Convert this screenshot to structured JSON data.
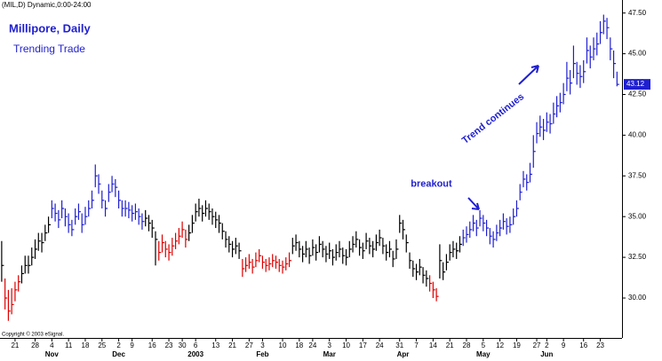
{
  "chart_data": {
    "type": "ohlc",
    "header": "(MIL,D) Dynamic,0:00-24:00",
    "title": "Millipore, Daily",
    "subtitle": "Trending Trade",
    "copyright": "Copyright © 2003 eSignal.",
    "annotations": [
      {
        "text": "breakout",
        "x": 128.5,
        "y": 37.0
      },
      {
        "text": "Trend continues",
        "x": 147,
        "y": 41.0
      }
    ],
    "ylim": [
      27.55,
      48.3
    ],
    "xlim": [
      -0.5,
      185.5
    ],
    "yticks": [
      {
        "value": 30,
        "label": "30.00"
      },
      {
        "value": 32.5,
        "label": "32.50"
      },
      {
        "value": 35,
        "label": "35.00"
      },
      {
        "value": 37.5,
        "label": "37.50"
      },
      {
        "value": 40,
        "label": "40.00"
      },
      {
        "value": 42.5,
        "label": "42.50"
      },
      {
        "value": 45,
        "label": "45.00"
      },
      {
        "value": 47.5,
        "label": "47.50"
      }
    ],
    "last_price": {
      "value": 43.12,
      "label": "43.12",
      "color": "#1f1fd0"
    },
    "xticks": [
      {
        "value": 4,
        "label": "21"
      },
      {
        "value": 10,
        "label": "28"
      },
      {
        "value": 15,
        "label": "4"
      },
      {
        "value": 20,
        "label": "11"
      },
      {
        "value": 25,
        "label": "18"
      },
      {
        "value": 30,
        "label": "25"
      },
      {
        "value": 35,
        "label": "2"
      },
      {
        "value": 39,
        "label": "9"
      },
      {
        "value": 45,
        "label": "16"
      },
      {
        "value": 50,
        "label": "23"
      },
      {
        "value": 54,
        "label": "30"
      },
      {
        "value": 58,
        "label": "6"
      },
      {
        "value": 64,
        "label": "13"
      },
      {
        "value": 69,
        "label": "21"
      },
      {
        "value": 74,
        "label": "27"
      },
      {
        "value": 78,
        "label": "3"
      },
      {
        "value": 84,
        "label": "10"
      },
      {
        "value": 89,
        "label": "18"
      },
      {
        "value": 93,
        "label": "24"
      },
      {
        "value": 98,
        "label": "3"
      },
      {
        "value": 103,
        "label": "10"
      },
      {
        "value": 108,
        "label": "17"
      },
      {
        "value": 113,
        "label": "24"
      },
      {
        "value": 119,
        "label": "31"
      },
      {
        "value": 124,
        "label": "7"
      },
      {
        "value": 129,
        "label": "14"
      },
      {
        "value": 134,
        "label": "21"
      },
      {
        "value": 139,
        "label": "28"
      },
      {
        "value": 144,
        "label": "5"
      },
      {
        "value": 149,
        "label": "12"
      },
      {
        "value": 154,
        "label": "19"
      },
      {
        "value": 160,
        "label": "27"
      },
      {
        "value": 163,
        "label": "2"
      },
      {
        "value": 168,
        "label": "9"
      },
      {
        "value": 174,
        "label": "16"
      },
      {
        "value": 179,
        "label": "23"
      }
    ],
    "month_labels": [
      {
        "value": 15,
        "label": "Nov"
      },
      {
        "value": 35,
        "label": "Dec"
      },
      {
        "value": 58,
        "label": "2003"
      },
      {
        "value": 78,
        "label": "Feb"
      },
      {
        "value": 98,
        "label": "Mar"
      },
      {
        "value": 120,
        "label": "Apr"
      },
      {
        "value": 144,
        "label": "May"
      },
      {
        "value": 163,
        "label": "Jun"
      }
    ],
    "color_runs": [
      {
        "color": "#000000",
        "count": 1
      },
      {
        "color": "#dd0000",
        "count": 5
      },
      {
        "color": "#000000",
        "count": 9
      },
      {
        "color": "#1f1fd0",
        "count": 28
      },
      {
        "color": "#000000",
        "count": 4
      },
      {
        "color": "#dd0000",
        "count": 9
      },
      {
        "color": "#000000",
        "count": 16
      },
      {
        "color": "#dd0000",
        "count": 15
      },
      {
        "color": "#000000",
        "count": 41
      },
      {
        "color": "#dd0000",
        "count": 3
      },
      {
        "color": "#000000",
        "count": 7
      },
      {
        "color": "#1f1fd0",
        "count": 47
      }
    ],
    "high": [
      33.5,
      31.2,
      30.5,
      30.6,
      31.0,
      31.4,
      32.0,
      32.6,
      32.6,
      33.1,
      33.6,
      34.0,
      34.0,
      34.5,
      35.0,
      36.0,
      35.8,
      35.4,
      36.0,
      35.5,
      35.2,
      34.8,
      35.5,
      35.8,
      35.2,
      35.6,
      36.0,
      36.6,
      38.2,
      37.6,
      36.6,
      36.0,
      37.0,
      37.5,
      37.3,
      36.6,
      36.0,
      36.0,
      35.9,
      35.7,
      35.8,
      35.5,
      35.2,
      35.4,
      35.1,
      34.8,
      34.1,
      33.5,
      33.9,
      33.5,
      33.3,
      33.7,
      34.0,
      34.3,
      34.7,
      34.2,
      34.5,
      35.1,
      35.8,
      36.1,
      35.7,
      36.0,
      35.8,
      35.5,
      35.3,
      35.1,
      34.6,
      34.1,
      33.8,
      33.5,
      33.7,
      33.4,
      32.4,
      32.5,
      32.7,
      32.4,
      32.8,
      33.0,
      32.6,
      32.4,
      32.5,
      32.7,
      32.6,
      32.4,
      32.3,
      32.5,
      32.8,
      33.7,
      33.9,
      33.5,
      33.2,
      33.5,
      33.1,
      33.6,
      33.3,
      33.8,
      33.5,
      33.2,
      33.4,
      33.0,
      33.3,
      33.5,
      33.1,
      33.0,
      33.5,
      33.8,
      34.1,
      33.6,
      33.4,
      34.0,
      33.7,
      33.5,
      33.9,
      34.2,
      33.7,
      33.3,
      33.5,
      32.9,
      33.6,
      35.1,
      34.8,
      33.9,
      32.8,
      32.3,
      32.1,
      32.4,
      31.9,
      31.7,
      31.4,
      31.0,
      30.6,
      33.3,
      32.2,
      32.7,
      33.3,
      33.5,
      33.4,
      33.8,
      34.2,
      34.4,
      34.7,
      35.1,
      34.8,
      35.4,
      35.1,
      34.8,
      34.3,
      34.1,
      34.5,
      34.8,
      35.2,
      34.9,
      35.0,
      35.5,
      36.0,
      37.0,
      37.8,
      37.6,
      38.3,
      40.0,
      40.8,
      41.2,
      41.0,
      41.4,
      41.3,
      42.0,
      42.4,
      42.6,
      43.2,
      44.5,
      44.0,
      45.5,
      44.5,
      44.3,
      44.6,
      46.0,
      45.5,
      46.0,
      46.3,
      47.0,
      47.4,
      47.2,
      46.0,
      45.2,
      43.9
    ],
    "low": [
      31.0,
      29.3,
      28.6,
      29.0,
      29.8,
      30.4,
      30.9,
      31.5,
      31.5,
      32.0,
      32.4,
      32.9,
      32.8,
      33.5,
      34.0,
      34.9,
      34.7,
      34.3,
      34.9,
      34.4,
      34.0,
      33.8,
      34.5,
      34.8,
      34.0,
      34.5,
      35.0,
      35.5,
      36.8,
      36.4,
      35.5,
      35.0,
      35.9,
      36.5,
      36.2,
      35.5,
      35.0,
      35.0,
      34.9,
      34.7,
      34.8,
      34.5,
      34.2,
      34.4,
      34.1,
      33.7,
      32.0,
      32.3,
      32.8,
      32.5,
      32.3,
      32.6,
      33.0,
      33.3,
      33.7,
      33.1,
      33.5,
      34.0,
      34.7,
      35.0,
      34.7,
      35.0,
      34.8,
      34.5,
      34.3,
      34.0,
      33.6,
      33.1,
      32.8,
      32.5,
      32.7,
      32.4,
      31.3,
      31.6,
      31.8,
      31.5,
      31.9,
      32.2,
      31.8,
      31.6,
      31.7,
      31.9,
      31.8,
      31.6,
      31.5,
      31.7,
      31.9,
      32.7,
      32.9,
      32.5,
      32.2,
      32.5,
      32.1,
      32.6,
      32.3,
      32.8,
      32.5,
      32.2,
      32.4,
      32.0,
      32.3,
      32.5,
      32.1,
      32.0,
      32.5,
      32.8,
      33.1,
      32.6,
      32.4,
      33.0,
      32.7,
      32.5,
      32.9,
      33.2,
      32.7,
      32.3,
      32.5,
      31.9,
      32.4,
      34.0,
      33.6,
      32.8,
      31.8,
      31.3,
      31.1,
      31.4,
      30.9,
      30.7,
      30.4,
      30.0,
      29.8,
      31.2,
      31.1,
      31.7,
      32.3,
      32.5,
      32.4,
      32.8,
      33.2,
      33.4,
      33.7,
      34.1,
      33.8,
      34.4,
      34.1,
      33.8,
      33.3,
      33.1,
      33.5,
      33.8,
      34.2,
      33.9,
      34.0,
      34.5,
      35.0,
      36.0,
      36.8,
      36.6,
      37.1,
      38.0,
      39.5,
      39.9,
      39.7,
      40.2,
      40.1,
      40.7,
      41.1,
      41.4,
      41.9,
      42.7,
      42.5,
      43.5,
      43.1,
      42.9,
      43.2,
      44.4,
      44.1,
      44.6,
      44.9,
      45.6,
      46.2,
      45.9,
      44.6,
      43.5,
      43.0
    ],
    "close": [
      32.0,
      30.0,
      29.2,
      29.6,
      30.5,
      31.0,
      31.5,
      32.0,
      32.0,
      32.5,
      33.0,
      33.5,
      33.4,
      34.0,
      34.5,
      35.5,
      35.2,
      34.8,
      35.5,
      35.0,
      34.5,
      34.2,
      35.0,
      35.3,
      34.5,
      35.0,
      35.5,
      36.0,
      37.5,
      37.0,
      36.0,
      35.5,
      36.5,
      37.0,
      36.8,
      36.0,
      35.5,
      35.5,
      35.4,
      35.2,
      35.3,
      35.0,
      34.7,
      34.9,
      34.6,
      34.3,
      33.6,
      32.8,
      33.4,
      33.0,
      32.8,
      33.2,
      33.5,
      33.8,
      34.2,
      33.6,
      34.0,
      34.6,
      35.3,
      35.5,
      35.2,
      35.5,
      35.3,
      35.0,
      34.8,
      34.6,
      34.1,
      33.6,
      33.3,
      33.0,
      33.2,
      32.9,
      31.8,
      32.0,
      32.2,
      31.9,
      32.3,
      32.6,
      32.2,
      32.0,
      32.1,
      32.3,
      32.2,
      32.0,
      31.9,
      32.1,
      32.3,
      33.2,
      33.4,
      33.0,
      32.7,
      33.0,
      32.6,
      33.1,
      32.8,
      33.3,
      33.0,
      32.7,
      32.9,
      32.5,
      32.8,
      33.0,
      32.6,
      32.5,
      33.0,
      33.3,
      33.6,
      33.1,
      32.9,
      33.5,
      33.2,
      33.0,
      33.4,
      33.7,
      33.2,
      32.8,
      33.0,
      32.4,
      33.0,
      34.6,
      34.2,
      33.4,
      32.3,
      31.8,
      31.6,
      31.9,
      31.4,
      31.2,
      30.9,
      30.5,
      30.1,
      32.3,
      31.6,
      32.2,
      32.8,
      33.0,
      32.9,
      33.3,
      33.7,
      33.9,
      34.2,
      34.6,
      34.3,
      34.9,
      34.6,
      34.3,
      33.8,
      33.6,
      34.0,
      34.3,
      34.7,
      34.4,
      34.5,
      35.0,
      35.5,
      36.5,
      37.3,
      37.1,
      37.6,
      39.0,
      40.1,
      40.5,
      40.3,
      40.8,
      40.7,
      41.3,
      41.8,
      42.0,
      42.5,
      43.5,
      43.2,
      44.4,
      43.8,
      43.6,
      43.9,
      45.2,
      44.8,
      45.3,
      45.6,
      46.3,
      47.0,
      46.6,
      45.3,
      44.4,
      43.12
    ]
  }
}
